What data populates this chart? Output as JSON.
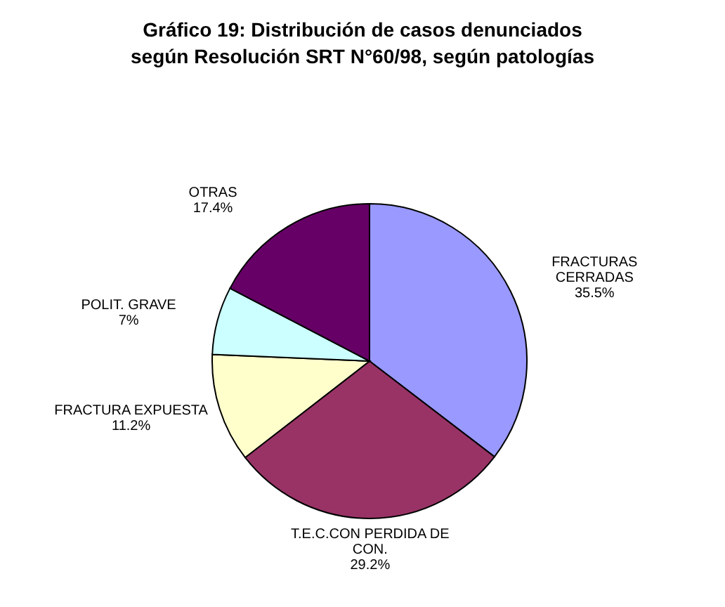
{
  "chart_data": {
    "type": "pie",
    "title": "Gráfico 19: Distribución de casos denunciados\nsegún Resolución SRT N°60/98, según patologías",
    "categories": [
      "FRACTURAS CERRADAS",
      "T.E.C.CON PERDIDA DE CON.",
      "FRACTURA EXPUESTA",
      "POLIT. GRAVE",
      "OTRAS"
    ],
    "values": [
      35.5,
      29.2,
      11.2,
      7,
      17.4
    ],
    "value_labels": [
      "35.5%",
      "29.2%",
      "11.2%",
      "7%",
      "17.4%"
    ],
    "colors": [
      "#9999ff",
      "#993366",
      "#ffffcc",
      "#ccffff",
      "#660066"
    ],
    "legend": false
  }
}
